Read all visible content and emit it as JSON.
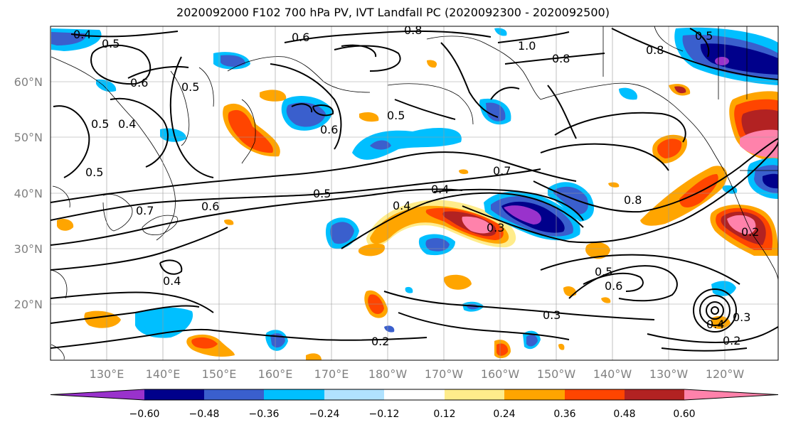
{
  "title": "2020092000 F102 700 hPa PV, IVT Landfall PC (2020092300 - 2020092500)",
  "lon_ticks": [
    "130°E",
    "140°E",
    "150°E",
    "160°E",
    "170°E",
    "180°W",
    "170°W",
    "160°W",
    "150°W",
    "140°W",
    "130°W",
    "120°W"
  ],
  "lat_ticks": [
    "60°N",
    "50°N",
    "40°N",
    "30°N",
    "20°N"
  ],
  "colorbar": {
    "colors": [
      "#9932CC",
      "#00008B",
      "#3A5FCD",
      "#00BFFF",
      "#B0E2FF",
      "#FFFFFF",
      "#FFEC8B",
      "#FFA500",
      "#FF4500",
      "#B22222",
      "#FF82AB"
    ],
    "tick_labels": [
      "−0.60",
      "−0.48",
      "−0.36",
      "−0.24",
      "−0.12",
      "0.12",
      "0.24",
      "0.36",
      "0.48",
      "0.60"
    ]
  },
  "contour_labels": [
    "0.4",
    "0.5",
    "0.6",
    "0.8",
    "1.0",
    "0.8",
    "0.5",
    "0.8",
    "0.6",
    "0.5",
    "0.5",
    "0.4",
    "0.6",
    "0.5",
    "0.5",
    "0.7",
    "0.7",
    "0.6",
    "0.5",
    "0.4",
    "0.4",
    "0.3",
    "0.8",
    "0.4",
    "0.5",
    "0.6",
    "0.3",
    "0.2",
    "0.2",
    "0.3",
    "0.4",
    "0.2"
  ]
}
